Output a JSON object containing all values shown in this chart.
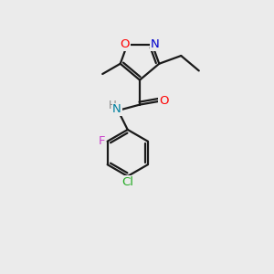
{
  "background_color": "#ebebeb",
  "bond_color": "#1a1a1a",
  "O_color": "#ff0000",
  "N_color": "#0000cc",
  "N_amide_color": "#0080a0",
  "Cl_color": "#22aa22",
  "F_color": "#cc44cc",
  "H_color": "#888888",
  "line_width": 1.6,
  "figsize": [
    3.0,
    3.0
  ],
  "dpi": 100,
  "xlim": [
    0,
    10
  ],
  "ylim": [
    0,
    10
  ]
}
